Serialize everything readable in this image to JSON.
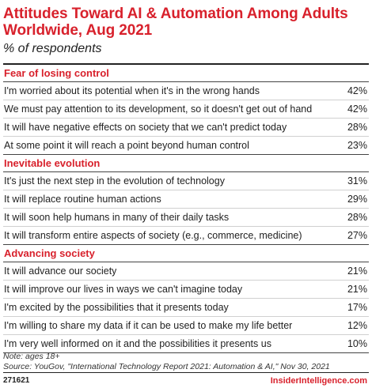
{
  "chart_data": {
    "type": "table",
    "title": "Attitudes Toward AI & Automation Among Adults Worldwide, Aug 2021",
    "subtitle": "% of respondents",
    "groups": [
      {
        "name": "Fear of losing control",
        "rows": [
          {
            "label": "I'm worried about its potential when it's in the wrong hands",
            "value": "42%"
          },
          {
            "label": "We must pay attention to its development, so it doesn't get out of hand",
            "value": "42%"
          },
          {
            "label": "It will have negative effects on society that we can't predict today",
            "value": "28%"
          },
          {
            "label": "At some point it will reach a point beyond human control",
            "value": "23%"
          }
        ]
      },
      {
        "name": "Inevitable evolution",
        "rows": [
          {
            "label": "It's just the next step in the evolution of technology",
            "value": "31%"
          },
          {
            "label": "It will replace routine human actions",
            "value": "29%"
          },
          {
            "label": "It will soon help humans in many of their daily tasks",
            "value": "28%"
          },
          {
            "label": "It will transform entire aspects of society (e.g., commerce, medicine)",
            "value": "27%"
          }
        ]
      },
      {
        "name": "Advancing society",
        "rows": [
          {
            "label": "It will advance our society",
            "value": "21%"
          },
          {
            "label": "It will improve our lives in ways we can't imagine today",
            "value": "21%"
          },
          {
            "label": "I'm excited by the possibilities that it presents today",
            "value": "17%"
          },
          {
            "label": "I'm willing to share my data if it can be used to make my life better",
            "value": "12%"
          },
          {
            "label": "I'm very well informed on it and the possibilities it presents us",
            "value": "10%"
          }
        ]
      }
    ],
    "note": "Note: ages 18+",
    "source": "Source: YouGov, \"International Technology Report 2021: Automation & AI,\" Nov 30, 2021",
    "chart_id": "271621",
    "brand": "InsiderIntelligence.com"
  },
  "colors": {
    "accent": "#d8212c",
    "text": "#222222"
  }
}
